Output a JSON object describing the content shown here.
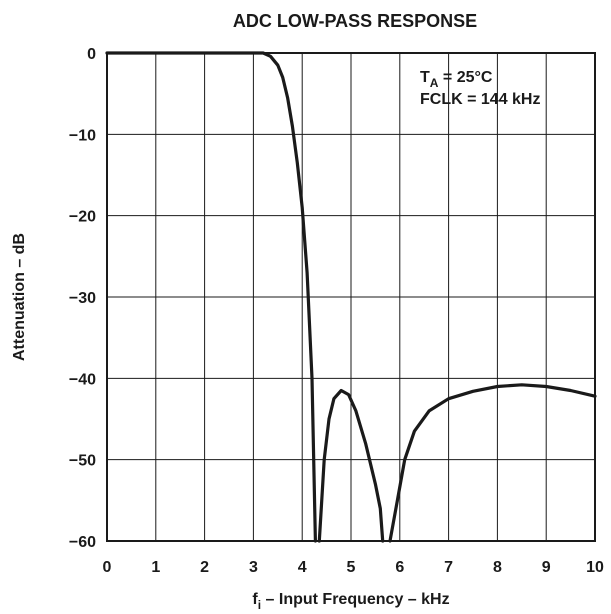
{
  "chart_data": {
    "type": "line",
    "title": "ADC LOW-PASS RESPONSE",
    "xlabel": {
      "prefix": "f",
      "subscript": "i",
      "suffix": " – Input Frequency – kHz"
    },
    "ylabel": "Attenuation – dB",
    "xlim": [
      0,
      10
    ],
    "ylim": [
      -60,
      0
    ],
    "x_ticks": [
      "0",
      "1",
      "2",
      "3",
      "4",
      "5",
      "6",
      "7",
      "8",
      "9",
      "10"
    ],
    "y_ticks": [
      "0",
      "−10",
      "−20",
      "−30",
      "−40",
      "−50",
      "−60"
    ],
    "grid": true,
    "annotation": {
      "line1": {
        "prefix": "T",
        "subscript": "A",
        "suffix": " = 25°C"
      },
      "line2": "FCLK = 144 kHz"
    },
    "line_color": "#1a1a1a",
    "series": [
      {
        "segments": [
          [
            [
              0,
              0
            ],
            [
              3.2,
              0
            ],
            [
              3.35,
              -0.4
            ],
            [
              3.5,
              -1.5
            ],
            [
              3.6,
              -3
            ],
            [
              3.7,
              -5.5
            ],
            [
              3.8,
              -9
            ],
            [
              3.9,
              -13.5
            ],
            [
              4.0,
              -19
            ],
            [
              4.1,
              -27
            ],
            [
              4.2,
              -40
            ],
            [
              4.27,
              -60
            ]
          ],
          [
            [
              4.35,
              -60
            ],
            [
              4.45,
              -50
            ],
            [
              4.55,
              -45
            ],
            [
              4.65,
              -42.5
            ],
            [
              4.8,
              -41.5
            ],
            [
              4.95,
              -42
            ],
            [
              5.1,
              -44
            ],
            [
              5.3,
              -48
            ],
            [
              5.5,
              -53
            ],
            [
              5.6,
              -56
            ],
            [
              5.65,
              -60
            ]
          ],
          [
            [
              5.8,
              -60
            ],
            [
              5.95,
              -55
            ],
            [
              6.1,
              -50
            ],
            [
              6.3,
              -46.5
            ],
            [
              6.6,
              -44
            ],
            [
              7.0,
              -42.5
            ],
            [
              7.5,
              -41.6
            ],
            [
              8.0,
              -41
            ],
            [
              8.5,
              -40.8
            ],
            [
              9.0,
              -41
            ],
            [
              9.5,
              -41.5
            ],
            [
              10.0,
              -42.2
            ]
          ]
        ]
      }
    ]
  }
}
